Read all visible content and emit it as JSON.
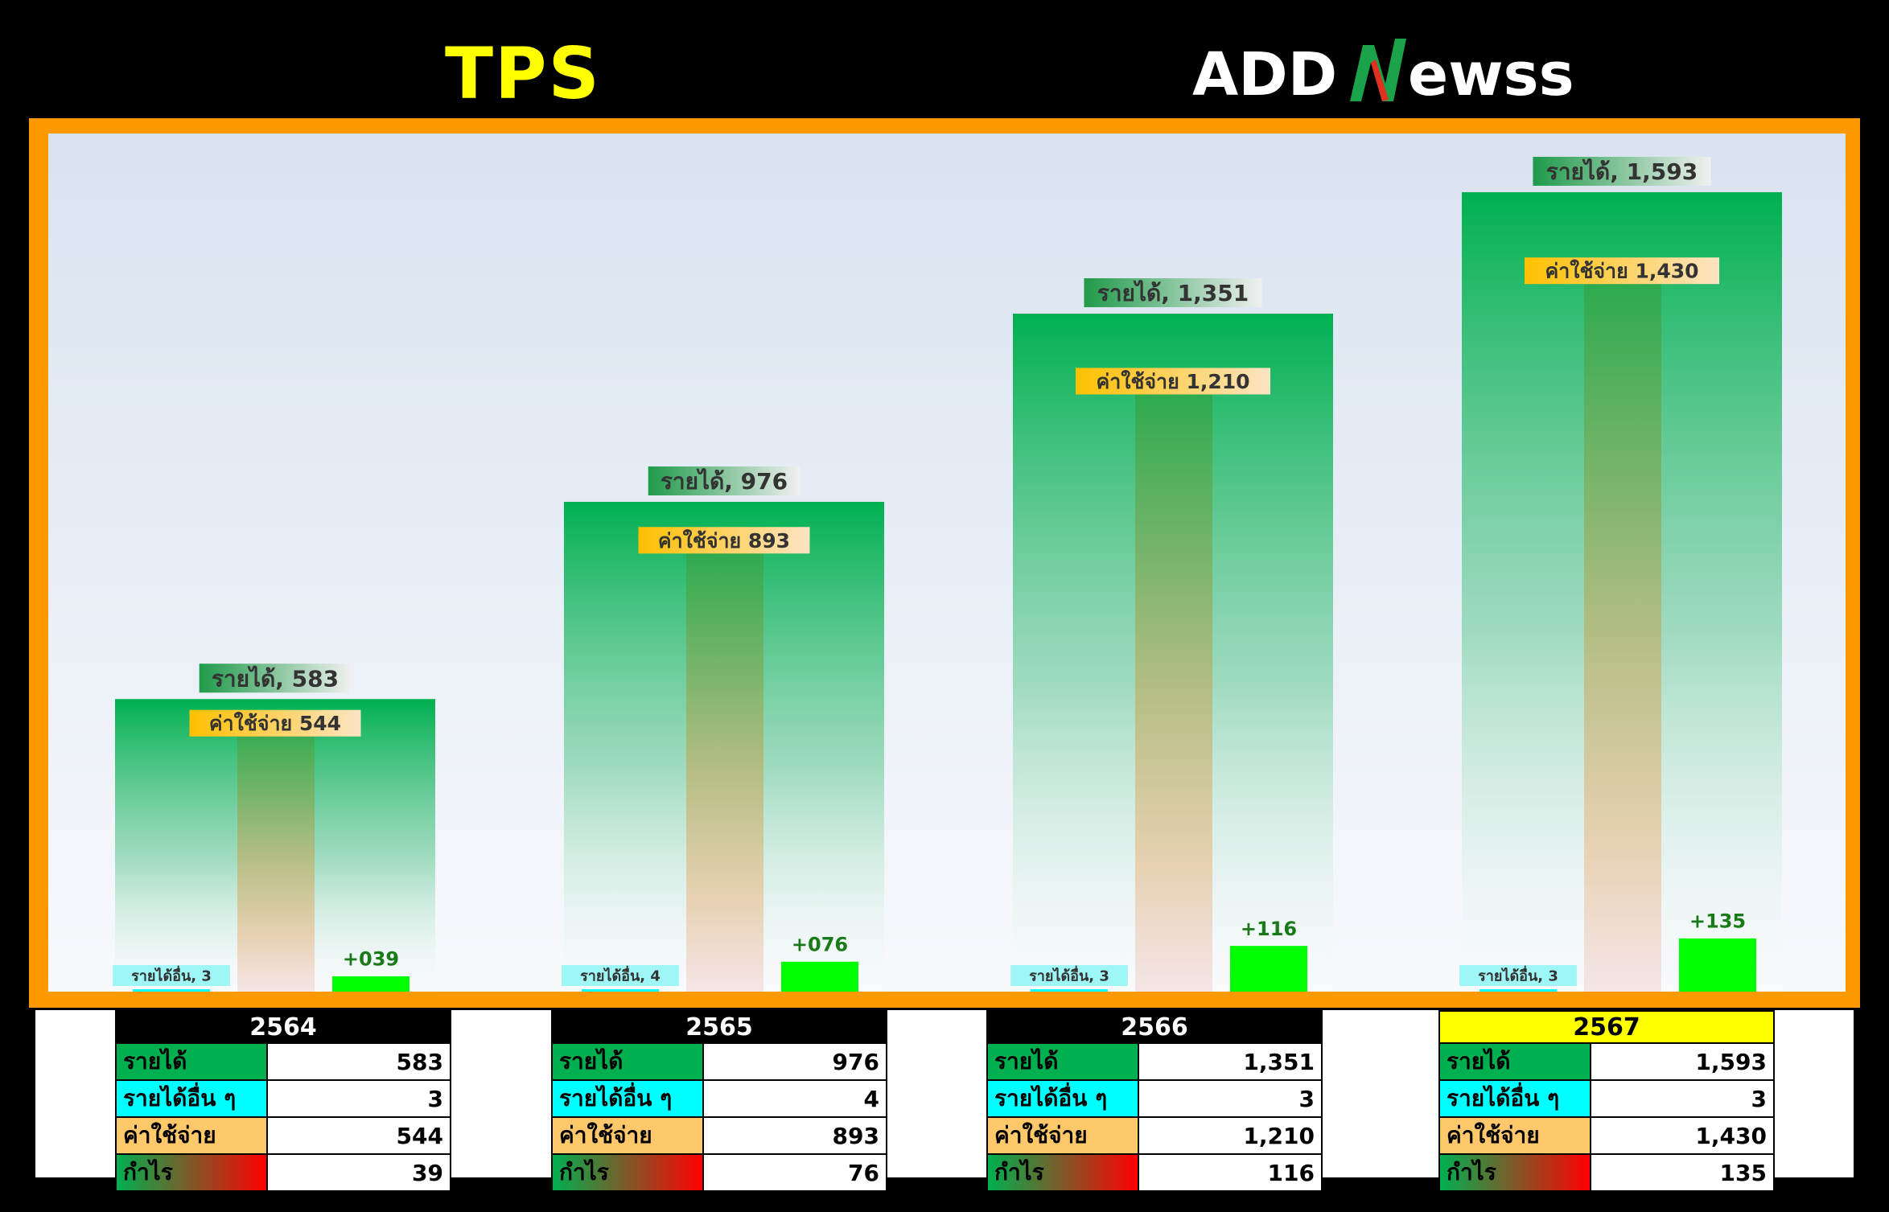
{
  "header": {
    "ticker": "TPS",
    "logo_text": "ADDNewss"
  },
  "chart_data": {
    "type": "bar",
    "categories": [
      "2564",
      "2565",
      "2566",
      "2567"
    ],
    "series": [
      {
        "name": "รายได้",
        "values": [
          583,
          976,
          1351,
          1593
        ]
      },
      {
        "name": "ค่าใช้จ่าย",
        "values": [
          544,
          893,
          1210,
          1430
        ]
      },
      {
        "name": "รายได้อื่น",
        "values": [
          3,
          4,
          3,
          3
        ]
      },
      {
        "name": "กำไร",
        "values": [
          39,
          76,
          116,
          135
        ]
      }
    ],
    "data_labels": {
      "revenue": [
        "รายได้, 583",
        "รายได้, 976",
        "รายได้, 1,351",
        "รายได้, 1,593"
      ],
      "expense": [
        "ค่าใช้จ่าย 544",
        "ค่าใช้จ่าย 893",
        "ค่าใช้จ่าย 1,210",
        "ค่าใช้จ่าย 1,430"
      ],
      "other": [
        "รายได้อื่น, 3",
        "รายได้อื่น, 4",
        "รายได้อื่น, 3",
        "รายได้อื่น, 3"
      ],
      "profit": [
        "+039",
        "+076",
        "+116",
        "+135"
      ]
    },
    "title": "",
    "xlabel": "",
    "ylabel": "",
    "ylim": [
      0,
      1800
    ],
    "grid": false,
    "legend": "none"
  },
  "colors": {
    "revenue": "#00b050",
    "expense": "#e8a05a",
    "other": "#00ffff",
    "profit": "#00ff00",
    "frame": "#ff9900",
    "highlight_year": "#ffff00"
  },
  "tables": [
    {
      "year": "2564",
      "rows": [
        {
          "label": "รายได้",
          "value": "583"
        },
        {
          "label": "รายได้อื่น ๆ",
          "value": "3"
        },
        {
          "label": "ค่าใช้จ่าย",
          "value": "544"
        },
        {
          "label": "กำไร",
          "value": "39"
        }
      ]
    },
    {
      "year": "2565",
      "rows": [
        {
          "label": "รายได้",
          "value": "976"
        },
        {
          "label": "รายได้อื่น ๆ",
          "value": "4"
        },
        {
          "label": "ค่าใช้จ่าย",
          "value": "893"
        },
        {
          "label": "กำไร",
          "value": "76"
        }
      ]
    },
    {
      "year": "2566",
      "rows": [
        {
          "label": "รายได้",
          "value": "1,351"
        },
        {
          "label": "รายได้อื่น ๆ",
          "value": "3"
        },
        {
          "label": "ค่าใช้จ่าย",
          "value": "1,210"
        },
        {
          "label": "กำไร",
          "value": "116"
        }
      ]
    },
    {
      "year": "2567",
      "rows": [
        {
          "label": "รายได้",
          "value": "1,593"
        },
        {
          "label": "รายได้อื่น ๆ",
          "value": "3"
        },
        {
          "label": "ค่าใช้จ่าย",
          "value": "1,430"
        },
        {
          "label": "กำไร",
          "value": "135"
        }
      ]
    }
  ]
}
